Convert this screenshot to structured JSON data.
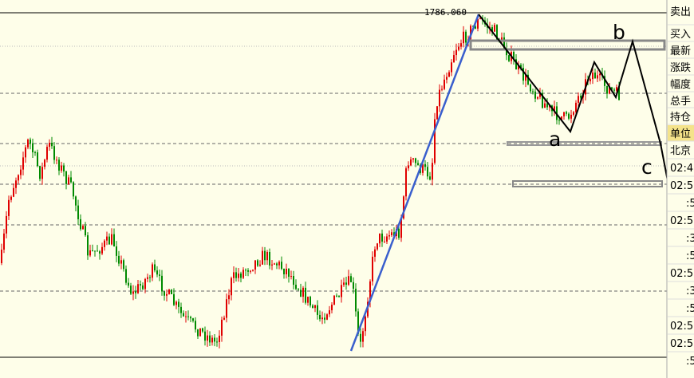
{
  "price_label": "1786.060",
  "wave_labels": [
    "a",
    "b",
    "c"
  ],
  "side_panel": [
    "卖出",
    "买入",
    "最新",
    "涨跌",
    "幅度",
    "总手",
    "持仓",
    "单位",
    "北京",
    "02:4",
    "02:5",
    ":5",
    "02:5",
    ":3",
    ":5",
    "02:5",
    ":3",
    ":5",
    "02:5",
    "02:5",
    ":5"
  ]
}
